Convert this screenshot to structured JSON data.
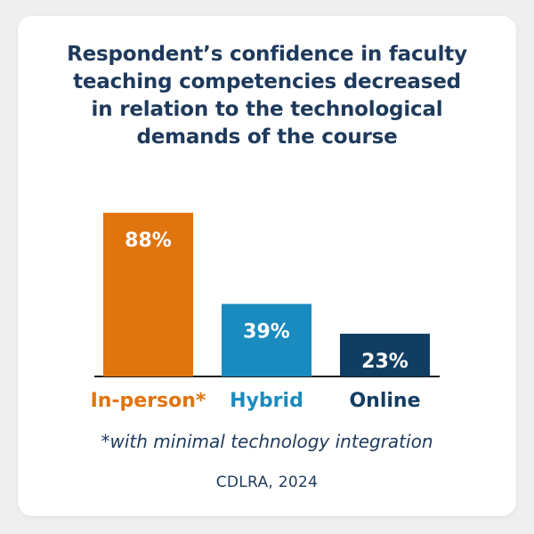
{
  "title_lines": [
    "Respondent’s confidence in faculty",
    "teaching competencies decreased",
    "in relation to the technological",
    "demands of the course"
  ],
  "footnote": "*with minimal technology integration",
  "source": "CDLRA, 2024",
  "colors": {
    "title": "#1e3a5c",
    "in_person": "#e0740f",
    "hybrid": "#1a8bbf",
    "online": "#123d63",
    "axis": "#1a1a1a"
  },
  "chart_data": {
    "type": "bar",
    "title": "Respondent’s confidence in faculty teaching competencies decreased in relation to the technological demands of the course",
    "categories": [
      "In-person*",
      "Hybrid",
      "Online"
    ],
    "values": [
      88,
      39,
      23
    ],
    "data_labels": [
      "88%",
      "39%",
      "23%"
    ],
    "bar_colors": [
      "#e0740f",
      "#1a8bbf",
      "#123d63"
    ],
    "ylim": [
      0,
      100
    ],
    "xlabel": "",
    "ylabel": "",
    "grid": false,
    "legend": "none"
  }
}
